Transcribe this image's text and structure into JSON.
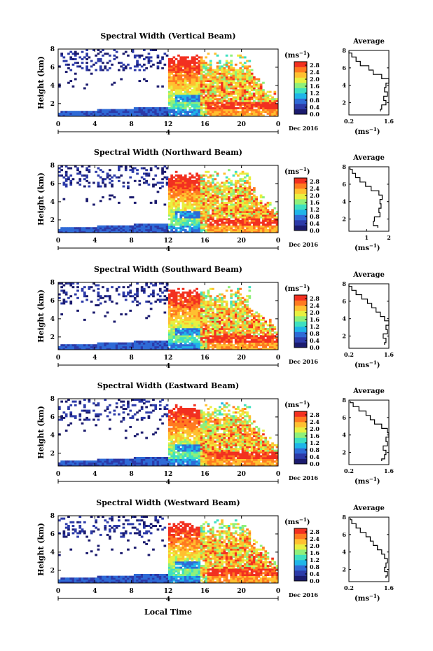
{
  "figure": {
    "x_axis_title": "Local Time",
    "date_label": "Dec 2016",
    "day_marker": "4",
    "colorbar_unit": "(ms",
    "colorbar_unit_exp": "−1",
    "avg_title": "Average",
    "avg_unit": "(ms",
    "avg_unit_exp": "−1"
  },
  "chart_data": [
    {
      "type": "heatmap",
      "title": "Spectral Width (Vertical Beam)",
      "ylabel": "Height (km)",
      "xlabel": "",
      "x_ticks": [
        "0",
        "4",
        "8",
        "12",
        "16",
        "20",
        "0"
      ],
      "y_ticks": [
        "2",
        "4",
        "6",
        "8"
      ],
      "xlim": [
        0,
        24
      ],
      "ylim": [
        0.6,
        8
      ],
      "colorbar_ticks": [
        "0.0",
        "0.4",
        "0.8",
        "1.2",
        "1.6",
        "2.0",
        "2.4",
        "2.8"
      ],
      "colorbar_range": [
        0,
        3.0
      ],
      "colors": [
        "#1b1b6e",
        "#2c3aa8",
        "#2f6ad6",
        "#1fb5e8",
        "#3ee0c0",
        "#8ff07a",
        "#e8f040",
        "#ffc030",
        "#ff7a20",
        "#f23020"
      ],
      "average": {
        "x_ticks": [
          "0.2",
          "1.6"
        ],
        "xlim": [
          0.2,
          1.6
        ],
        "ylim": [
          0.6,
          8
        ],
        "y_ticks": [
          "2",
          "4",
          "6",
          "8"
        ],
        "height": [
          1.0,
          1.5,
          2.0,
          2.5,
          3.0,
          3.5,
          4.0,
          4.5,
          5.0,
          5.5,
          6.0,
          6.5,
          7.0,
          7.5,
          7.9
        ],
        "value": [
          1.3,
          1.35,
          1.5,
          1.42,
          1.55,
          1.45,
          1.5,
          1.6,
          1.35,
          1.05,
          0.9,
          0.6,
          0.45,
          0.3,
          0.2
        ]
      }
    },
    {
      "type": "heatmap",
      "title": "Spectral Width (Northward Beam)",
      "ylabel": "Height (km)",
      "xlabel": "",
      "x_ticks": [
        "0",
        "4",
        "8",
        "12",
        "16",
        "20",
        "0"
      ],
      "y_ticks": [
        "2",
        "4",
        "6",
        "8"
      ],
      "xlim": [
        0,
        24
      ],
      "ylim": [
        0.6,
        8
      ],
      "colorbar_ticks": [
        "0.0",
        "0.4",
        "0.8",
        "1.2",
        "1.6",
        "2.0",
        "2.4",
        "2.8"
      ],
      "colorbar_range": [
        0,
        3.0
      ],
      "colors": [
        "#1b1b6e",
        "#2c3aa8",
        "#2f6ad6",
        "#1fb5e8",
        "#3ee0c0",
        "#8ff07a",
        "#e8f040",
        "#ffc030",
        "#ff7a20",
        "#f23020"
      ],
      "average": {
        "x_ticks": [
          "1",
          "2"
        ],
        "xlim": [
          0.2,
          2.0
        ],
        "ylim": [
          0.6,
          8
        ],
        "y_ticks": [
          "2",
          "4",
          "6",
          "8"
        ],
        "height": [
          1.0,
          1.5,
          2.0,
          2.5,
          3.0,
          3.5,
          4.0,
          4.5,
          5.0,
          5.5,
          6.0,
          6.5,
          7.0,
          7.5,
          7.9
        ],
        "value": [
          1.5,
          1.3,
          1.35,
          1.6,
          1.55,
          1.65,
          1.6,
          1.7,
          1.55,
          1.2,
          0.95,
          0.7,
          0.5,
          0.35,
          0.25
        ]
      }
    },
    {
      "type": "heatmap",
      "title": "Spectral Width (Southward Beam)",
      "ylabel": "Height (km)",
      "xlabel": "",
      "x_ticks": [
        "0",
        "4",
        "8",
        "12",
        "16",
        "20",
        "0"
      ],
      "y_ticks": [
        "2",
        "4",
        "6",
        "8"
      ],
      "xlim": [
        0,
        24
      ],
      "ylim": [
        0.6,
        8
      ],
      "colorbar_ticks": [
        "0.0",
        "0.4",
        "0.8",
        "1.2",
        "1.6",
        "2.0",
        "2.4",
        "2.8"
      ],
      "colorbar_range": [
        0,
        3.0
      ],
      "colors": [
        "#1b1b6e",
        "#2c3aa8",
        "#2f6ad6",
        "#1fb5e8",
        "#3ee0c0",
        "#8ff07a",
        "#e8f040",
        "#ffc030",
        "#ff7a20",
        "#f23020"
      ],
      "average": {
        "x_ticks": [
          "0.2",
          "1.6"
        ],
        "xlim": [
          0.2,
          1.6
        ],
        "ylim": [
          0.6,
          8
        ],
        "y_ticks": [
          "2",
          "4",
          "6",
          "8"
        ],
        "height": [
          1.0,
          1.5,
          2.0,
          2.5,
          3.0,
          3.5,
          4.0,
          4.5,
          5.0,
          5.5,
          6.0,
          6.5,
          7.0,
          7.5,
          7.9
        ],
        "value": [
          1.45,
          1.5,
          1.4,
          1.55,
          1.5,
          1.6,
          1.45,
          1.3,
          1.15,
          1.0,
          0.85,
          0.65,
          0.45,
          0.3,
          0.2
        ]
      }
    },
    {
      "type": "heatmap",
      "title": "Spectral Width (Eastward Beam)",
      "ylabel": "Height (km)",
      "xlabel": "",
      "x_ticks": [
        "0",
        "4",
        "8",
        "12",
        "16",
        "20",
        "0"
      ],
      "y_ticks": [
        "2",
        "4",
        "6",
        "8"
      ],
      "xlim": [
        0,
        24
      ],
      "ylim": [
        0.6,
        8
      ],
      "colorbar_ticks": [
        "0.0",
        "0.4",
        "0.8",
        "1.2",
        "1.6",
        "2.0",
        "2.4",
        "2.8"
      ],
      "colorbar_range": [
        0,
        3.0
      ],
      "colors": [
        "#1b1b6e",
        "#2c3aa8",
        "#2f6ad6",
        "#1fb5e8",
        "#3ee0c0",
        "#8ff07a",
        "#e8f040",
        "#ffc030",
        "#ff7a20",
        "#f23020"
      ],
      "average": {
        "x_ticks": [
          "0.2",
          "1.6"
        ],
        "xlim": [
          0.2,
          1.6
        ],
        "ylim": [
          0.6,
          8
        ],
        "y_ticks": [
          "2",
          "4",
          "6",
          "8"
        ],
        "height": [
          1.0,
          1.5,
          2.0,
          2.5,
          3.0,
          3.5,
          4.0,
          4.5,
          5.0,
          5.5,
          6.0,
          6.5,
          7.0,
          7.5,
          7.9
        ],
        "value": [
          1.35,
          1.45,
          1.5,
          1.4,
          1.55,
          1.5,
          1.6,
          1.55,
          1.35,
          1.1,
          0.95,
          0.8,
          0.55,
          0.35,
          0.25
        ]
      }
    },
    {
      "type": "heatmap",
      "title": "Spectral Width (Westward Beam)",
      "ylabel": "Height (km)",
      "xlabel": "Local Time",
      "x_ticks": [
        "0",
        "4",
        "8",
        "12",
        "16",
        "20",
        "0"
      ],
      "y_ticks": [
        "2",
        "4",
        "6",
        "8"
      ],
      "xlim": [
        0,
        24
      ],
      "ylim": [
        0.6,
        8
      ],
      "colorbar_ticks": [
        "0.0",
        "0.4",
        "0.8",
        "1.2",
        "1.6",
        "2.0",
        "2.4",
        "2.8"
      ],
      "colorbar_range": [
        0,
        3.0
      ],
      "colors": [
        "#1b1b6e",
        "#2c3aa8",
        "#2f6ad6",
        "#1fb5e8",
        "#3ee0c0",
        "#8ff07a",
        "#e8f040",
        "#ffc030",
        "#ff7a20",
        "#f23020"
      ],
      "average": {
        "x_ticks": [
          "0.2",
          "1.6"
        ],
        "xlim": [
          0.2,
          1.6
        ],
        "ylim": [
          0.6,
          8
        ],
        "y_ticks": [
          "2",
          "4",
          "6",
          "8"
        ],
        "height": [
          1.0,
          1.5,
          2.0,
          2.5,
          3.0,
          3.5,
          4.0,
          4.5,
          5.0,
          5.5,
          6.0,
          6.5,
          7.0,
          7.5,
          7.9
        ],
        "value": [
          1.5,
          1.55,
          1.45,
          1.5,
          1.55,
          1.45,
          1.35,
          1.2,
          1.05,
          0.95,
          0.8,
          0.6,
          0.45,
          0.3,
          0.25
        ]
      }
    }
  ]
}
